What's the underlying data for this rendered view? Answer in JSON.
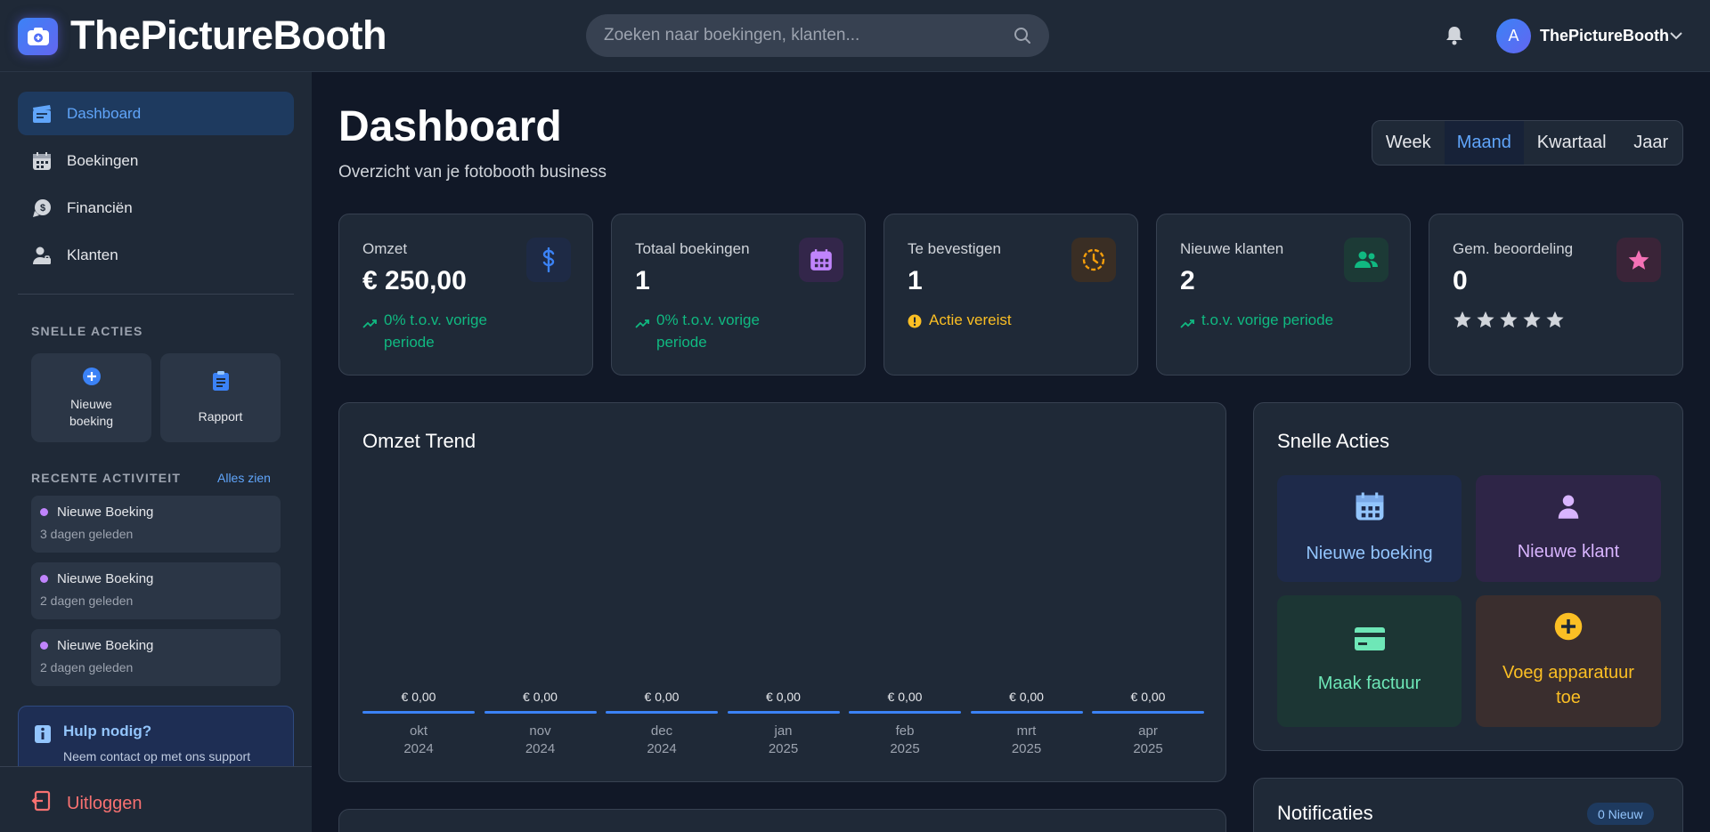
{
  "header": {
    "brand": "ThePictureBooth",
    "search_placeholder": "Zoeken naar boekingen, klanten...",
    "avatar_initial": "A",
    "user_name": "ThePictureBooth"
  },
  "sidebar": {
    "nav": [
      {
        "label": "Dashboard",
        "icon": "clapperboard-icon",
        "active": true
      },
      {
        "label": "Boekingen",
        "icon": "calendar-icon"
      },
      {
        "label": "Financiën",
        "icon": "money-icon"
      },
      {
        "label": "Klanten",
        "icon": "user-icon"
      }
    ],
    "quick_actions_label": "SNELLE ACTIES",
    "quick_actions": [
      {
        "label_line1": "Nieuwe",
        "label_line2": "boeking",
        "icon": "plus-circle-icon"
      },
      {
        "label": "Rapport",
        "icon": "clipboard-icon"
      }
    ],
    "recent_label": "RECENTE ACTIVITEIT",
    "see_all": "Alles zien",
    "activities": [
      {
        "title": "Nieuwe Boeking",
        "time": "3 dagen geleden"
      },
      {
        "title": "Nieuwe Boeking",
        "time": "2 dagen geleden"
      },
      {
        "title": "Nieuwe Boeking",
        "time": "2 dagen geleden"
      }
    ],
    "help_title": "Hulp nodig?",
    "help_text": "Neem contact op met ons support",
    "logout": "Uitloggen"
  },
  "main": {
    "title": "Dashboard",
    "subtitle": "Overzicht van je fotobooth business",
    "periods": [
      "Week",
      "Maand",
      "Kwartaal",
      "Jaar"
    ],
    "active_period": "Maand",
    "stats": [
      {
        "label": "Omzet",
        "value": "€ 250,00",
        "note_line1": "0% t.o.v. vorige",
        "note_line2": "periode",
        "icon": "dollar-icon",
        "color": "#3b82f6"
      },
      {
        "label": "Totaal boekingen",
        "value": "1",
        "note_line1": "0% t.o.v. vorige",
        "note_line2": "periode",
        "icon": "calendar-icon",
        "color": "#c084fc"
      },
      {
        "label": "Te bevestigen",
        "value": "1",
        "note_line1": "Actie vereist",
        "icon": "clock-icon",
        "color": "#f59e0b"
      },
      {
        "label": "Nieuwe klanten",
        "value": "2",
        "note_line1": "t.o.v. vorige periode",
        "icon": "users-icon",
        "color": "#10b981"
      },
      {
        "label": "Gem. beoordeling",
        "value": "0",
        "icon": "star-icon",
        "color": "#f472b6",
        "stars": 0
      }
    ],
    "trend_title": "Omzet Trend",
    "quick_title": "Snelle Acties",
    "quick": [
      {
        "label": "Nieuwe boeking",
        "icon": "calendar-icon",
        "color": "#93c5fd"
      },
      {
        "label": "Nieuwe klant",
        "icon": "user-icon",
        "color": "#d8b4fe"
      },
      {
        "label": "Maak factuur",
        "icon": "credit-card-icon",
        "color": "#6ee7b7"
      },
      {
        "label_line1": "Voeg apparatuur",
        "label_line2": "toe",
        "icon": "plus-circle-icon",
        "color": "#fbbf24"
      }
    ],
    "notifications_title": "Notificaties",
    "notifications_badge": "0 Nieuw"
  },
  "chart_data": {
    "type": "bar",
    "title": "Omzet Trend",
    "categories": [
      "okt 2024",
      "nov 2024",
      "dec 2024",
      "jan 2025",
      "feb 2025",
      "mrt 2025",
      "apr 2025"
    ],
    "category_lines": [
      [
        "okt",
        "2024"
      ],
      [
        "nov",
        "2024"
      ],
      [
        "dec",
        "2024"
      ],
      [
        "jan",
        "2025"
      ],
      [
        "feb",
        "2025"
      ],
      [
        "mrt",
        "2025"
      ],
      [
        "apr",
        "2025"
      ]
    ],
    "values": [
      0,
      0,
      0,
      0,
      0,
      0,
      0
    ],
    "value_labels": [
      "€ 0,00",
      "€ 0,00",
      "€ 0,00",
      "€ 0,00",
      "€ 0,00",
      "€ 0,00",
      "€ 0,00"
    ],
    "xlabel": "",
    "ylabel": "",
    "color": "#3b82f6"
  }
}
